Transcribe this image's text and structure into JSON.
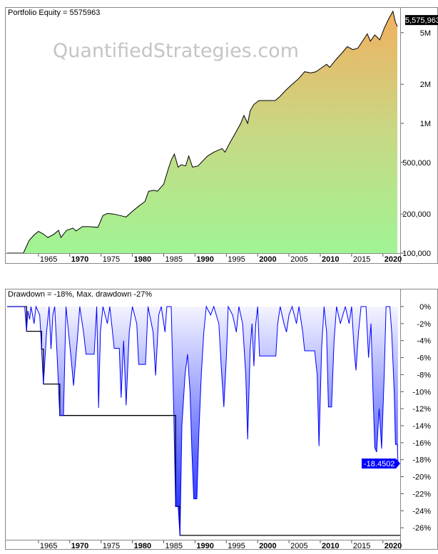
{
  "watermark": "QuantifiedStrategies.com",
  "colors": {
    "equity_fill_bottom": "#a0f494",
    "equity_fill_top": "#f0b060",
    "equity_line": "#000000",
    "drawdown_line": "#0000ff",
    "drawdown_fill_top": "#f4f4ff",
    "drawdown_fill_bottom": "#1020ff",
    "max_drawdown_line": "#000000",
    "equity_label_bg": "#000000",
    "drawdown_label_bg": "#0000ff"
  },
  "chart_data": [
    {
      "type": "area",
      "title": "Portfolio Equity = 5575963",
      "last_value_label": "5,575,963",
      "y_scale": "log",
      "ylim": [
        100000,
        7500000
      ],
      "xlim": [
        1960,
        2022.4
      ],
      "grid": false,
      "y_ticks": [
        {
          "value": 5000000,
          "label": "5M"
        },
        {
          "value": 2000000,
          "label": "2M"
        },
        {
          "value": 1000000,
          "label": "1M"
        },
        {
          "value": 500000,
          "label": "500,000"
        },
        {
          "value": 200000,
          "label": "200,000"
        },
        {
          "value": 100000,
          "label": "100,000"
        }
      ],
      "x_ticks": [
        {
          "value": 1965,
          "label": "1965",
          "bold": false
        },
        {
          "value": 1970,
          "label": "1970",
          "bold": true
        },
        {
          "value": 1975,
          "label": "1975",
          "bold": false
        },
        {
          "value": 1980,
          "label": "1980",
          "bold": true
        },
        {
          "value": 1985,
          "label": "1985",
          "bold": false
        },
        {
          "value": 1990,
          "label": "1990",
          "bold": true
        },
        {
          "value": 1995,
          "label": "1995",
          "bold": false
        },
        {
          "value": 2000,
          "label": "2000",
          "bold": true
        },
        {
          "value": 2005,
          "label": "2005",
          "bold": false
        },
        {
          "value": 2010,
          "label": "2010",
          "bold": true
        },
        {
          "value": 2015,
          "label": "2015",
          "bold": false
        },
        {
          "value": 2020,
          "label": "2020",
          "bold": true
        }
      ],
      "points": [
        [
          1960,
          100000
        ],
        [
          1962.6,
          100000
        ],
        [
          1963.5,
          125000
        ],
        [
          1964.3,
          138000
        ],
        [
          1965,
          147000
        ],
        [
          1965.8,
          140000
        ],
        [
          1966.5,
          132000
        ],
        [
          1967.5,
          140000
        ],
        [
          1968.2,
          150000
        ],
        [
          1968.6,
          132000
        ],
        [
          1969.5,
          150000
        ],
        [
          1970.5,
          156000
        ],
        [
          1971,
          148000
        ],
        [
          1972,
          160000
        ],
        [
          1973,
          160000
        ],
        [
          1974.5,
          158000
        ],
        [
          1975.3,
          195000
        ],
        [
          1976,
          202000
        ],
        [
          1977,
          200000
        ],
        [
          1978,
          195000
        ],
        [
          1979,
          190000
        ],
        [
          1980,
          210000
        ],
        [
          1981,
          230000
        ],
        [
          1982,
          250000
        ],
        [
          1982.6,
          300000
        ],
        [
          1983.5,
          305000
        ],
        [
          1984,
          300000
        ],
        [
          1985,
          340000
        ],
        [
          1985.7,
          440000
        ],
        [
          1986.2,
          520000
        ],
        [
          1986.7,
          580000
        ],
        [
          1987.3,
          460000
        ],
        [
          1987.8,
          480000
        ],
        [
          1988.5,
          470000
        ],
        [
          1989,
          560000
        ],
        [
          1989.6,
          460000
        ],
        [
          1990.5,
          470000
        ],
        [
          1991,
          500000
        ],
        [
          1992,
          560000
        ],
        [
          1993,
          600000
        ],
        [
          1994.3,
          640000
        ],
        [
          1994.8,
          600000
        ],
        [
          1995.5,
          700000
        ],
        [
          1996.5,
          850000
        ],
        [
          1997.3,
          1000000
        ],
        [
          1997.8,
          1150000
        ],
        [
          1998.4,
          1000000
        ],
        [
          1998.8,
          1250000
        ],
        [
          1999.4,
          1400000
        ],
        [
          2000.2,
          1500000
        ],
        [
          2002.8,
          1500000
        ],
        [
          2003.5,
          1600000
        ],
        [
          2004.5,
          1800000
        ],
        [
          2005.5,
          2000000
        ],
        [
          2006.5,
          2200000
        ],
        [
          2007.5,
          2500000
        ],
        [
          2008.5,
          2450000
        ],
        [
          2009.3,
          2500000
        ],
        [
          2010.3,
          2700000
        ],
        [
          2011,
          2850000
        ],
        [
          2011.5,
          2700000
        ],
        [
          2012.5,
          3100000
        ],
        [
          2013.5,
          3500000
        ],
        [
          2014.3,
          3900000
        ],
        [
          2015.2,
          3700000
        ],
        [
          2016,
          3800000
        ],
        [
          2017,
          4500000
        ],
        [
          2017.5,
          4900000
        ],
        [
          2018,
          4300000
        ],
        [
          2018.7,
          4800000
        ],
        [
          2019.5,
          4400000
        ],
        [
          2020.2,
          5400000
        ],
        [
          2021,
          6500000
        ],
        [
          2021.6,
          7300000
        ],
        [
          2022,
          6000000
        ],
        [
          2022.3,
          5575963
        ]
      ]
    },
    {
      "type": "area",
      "title": "Drawdown = -18%, Max. drawdown -27%",
      "last_value_label": "-18.4502",
      "ylim": [
        -27.5,
        0
      ],
      "xlim": [
        1960,
        2022.4
      ],
      "grid": false,
      "y_ticks": [
        {
          "value": 0,
          "label": "0%"
        },
        {
          "value": -2,
          "label": "-2%"
        },
        {
          "value": -4,
          "label": "-4%"
        },
        {
          "value": -6,
          "label": "-6%"
        },
        {
          "value": -8,
          "label": "-8%"
        },
        {
          "value": -10,
          "label": "-10%"
        },
        {
          "value": -12,
          "label": "-12%"
        },
        {
          "value": -14,
          "label": "-14%"
        },
        {
          "value": -16,
          "label": "-16%"
        },
        {
          "value": -18,
          "label": "-18%"
        },
        {
          "value": -20,
          "label": "-20%"
        },
        {
          "value": -22,
          "label": "-22%"
        },
        {
          "value": -24,
          "label": "-24%"
        },
        {
          "value": -26,
          "label": "-26%"
        }
      ],
      "x_ticks": [
        {
          "value": 1965,
          "label": "1965",
          "bold": false
        },
        {
          "value": 1970,
          "label": "1970",
          "bold": true
        },
        {
          "value": 1975,
          "label": "1975",
          "bold": false
        },
        {
          "value": 1980,
          "label": "1980",
          "bold": true
        },
        {
          "value": 1985,
          "label": "1985",
          "bold": false
        },
        {
          "value": 1990,
          "label": "1990",
          "bold": true
        },
        {
          "value": 1995,
          "label": "1995",
          "bold": false
        },
        {
          "value": 2000,
          "label": "2000",
          "bold": true
        },
        {
          "value": 2005,
          "label": "2005",
          "bold": false
        },
        {
          "value": 2010,
          "label": "2010",
          "bold": true
        },
        {
          "value": 2015,
          "label": "2015",
          "bold": false
        },
        {
          "value": 2020,
          "label": "2020",
          "bold": true
        }
      ],
      "points": [
        [
          1960,
          0
        ],
        [
          1962.8,
          0
        ],
        [
          1963.1,
          -2.9
        ],
        [
          1963.3,
          -0.5
        ],
        [
          1963.6,
          -1.5
        ],
        [
          1963.8,
          0
        ],
        [
          1964.3,
          -2
        ],
        [
          1964.6,
          0
        ],
        [
          1965.2,
          -1
        ],
        [
          1965.5,
          -5
        ],
        [
          1965.8,
          -9.1
        ],
        [
          1966.3,
          -3
        ],
        [
          1966.7,
          0
        ],
        [
          1967,
          -5
        ],
        [
          1967.3,
          -1
        ],
        [
          1967.6,
          0
        ],
        [
          1968,
          -6
        ],
        [
          1968.4,
          -12.8
        ],
        [
          1969,
          -12.8
        ],
        [
          1969.4,
          0
        ],
        [
          1970.2,
          -6
        ],
        [
          1970.6,
          -9.3
        ],
        [
          1971.2,
          -4
        ],
        [
          1971.6,
          0
        ],
        [
          1972.2,
          -3
        ],
        [
          1972.6,
          -5.6
        ],
        [
          1973.9,
          -5.6
        ],
        [
          1974.3,
          0
        ],
        [
          1974.6,
          -11.9
        ],
        [
          1974.9,
          -3
        ],
        [
          1975.3,
          0
        ],
        [
          1976,
          -2
        ],
        [
          1976.4,
          0
        ],
        [
          1977.1,
          -4.9
        ],
        [
          1977.9,
          -4.9
        ],
        [
          1978.2,
          -10.7
        ],
        [
          1978.6,
          -4
        ],
        [
          1979,
          -11.6
        ],
        [
          1979.5,
          -3
        ],
        [
          1980,
          0
        ],
        [
          1980.7,
          -2
        ],
        [
          1981,
          -6.8
        ],
        [
          1982.1,
          -6.8
        ],
        [
          1982.5,
          0
        ],
        [
          1983.3,
          -3
        ],
        [
          1983.7,
          -8.1
        ],
        [
          1984.2,
          -1
        ],
        [
          1984.6,
          0
        ],
        [
          1985.2,
          -3
        ],
        [
          1985.5,
          0
        ],
        [
          1986.2,
          0
        ],
        [
          1986.6,
          -12
        ],
        [
          1986.9,
          -23.5
        ],
        [
          1987.3,
          -23.5
        ],
        [
          1987.6,
          -26.9
        ],
        [
          1987.9,
          -14
        ],
        [
          1988.4,
          -8
        ],
        [
          1988.8,
          -5.6
        ],
        [
          1989.2,
          -10
        ],
        [
          1989.5,
          -17
        ],
        [
          1989.8,
          -22.6
        ],
        [
          1990.3,
          -22.6
        ],
        [
          1990.6,
          -15
        ],
        [
          1991,
          -8
        ],
        [
          1991.4,
          -3
        ],
        [
          1991.8,
          0
        ],
        [
          1992.5,
          -1
        ],
        [
          1993,
          0
        ],
        [
          1993.8,
          -2
        ],
        [
          1994.2,
          -7.3
        ],
        [
          1994.6,
          -11.8
        ],
        [
          1995,
          -6
        ],
        [
          1995.3,
          0
        ],
        [
          1996,
          -1
        ],
        [
          1996.6,
          -3
        ],
        [
          1997,
          0
        ],
        [
          1997.6,
          -2
        ],
        [
          1998.1,
          -8
        ],
        [
          1998.4,
          -15.6
        ],
        [
          1998.8,
          -5
        ],
        [
          1999.1,
          -2
        ],
        [
          1999.4,
          -7
        ],
        [
          1999.7,
          -2
        ],
        [
          2000,
          0
        ],
        [
          2000.3,
          -5.8
        ],
        [
          2002.9,
          -5.8
        ],
        [
          2003.2,
          -2
        ],
        [
          2003.6,
          0
        ],
        [
          2004.2,
          -2
        ],
        [
          2004.6,
          -3
        ],
        [
          2005,
          -1
        ],
        [
          2005.5,
          0
        ],
        [
          2006.2,
          -2
        ],
        [
          2006.6,
          0
        ],
        [
          2007.2,
          -3
        ],
        [
          2007.5,
          -5.2
        ],
        [
          2009.1,
          -5.2
        ],
        [
          2009.5,
          -8
        ],
        [
          2009.8,
          -16.4
        ],
        [
          2010.2,
          -5
        ],
        [
          2010.6,
          0
        ],
        [
          2011,
          -3
        ],
        [
          2011.3,
          -11.8
        ],
        [
          2011.8,
          -11.8
        ],
        [
          2012.2,
          -4
        ],
        [
          2012.6,
          0
        ],
        [
          2013.2,
          -2
        ],
        [
          2013.6,
          -1
        ],
        [
          2014,
          0
        ],
        [
          2014.6,
          -2
        ],
        [
          2015,
          0
        ],
        [
          2015.4,
          -5
        ],
        [
          2015.7,
          -7.5
        ],
        [
          2016.1,
          -3
        ],
        [
          2016.5,
          0
        ],
        [
          2017.3,
          0
        ],
        [
          2017.7,
          -6
        ],
        [
          2018.1,
          -2
        ],
        [
          2018.4,
          -10
        ],
        [
          2018.7,
          -16.6
        ],
        [
          2019,
          -17.1
        ],
        [
          2019.4,
          -12
        ],
        [
          2019.8,
          -16.7
        ],
        [
          2020.2,
          -8
        ],
        [
          2020.5,
          0
        ],
        [
          2021.1,
          0
        ],
        [
          2021.4,
          -3
        ],
        [
          2021.8,
          -10
        ],
        [
          2022,
          -16.2
        ],
        [
          2022.3,
          -16.2
        ],
        [
          2022.4,
          -18.45
        ]
      ]
    }
  ]
}
